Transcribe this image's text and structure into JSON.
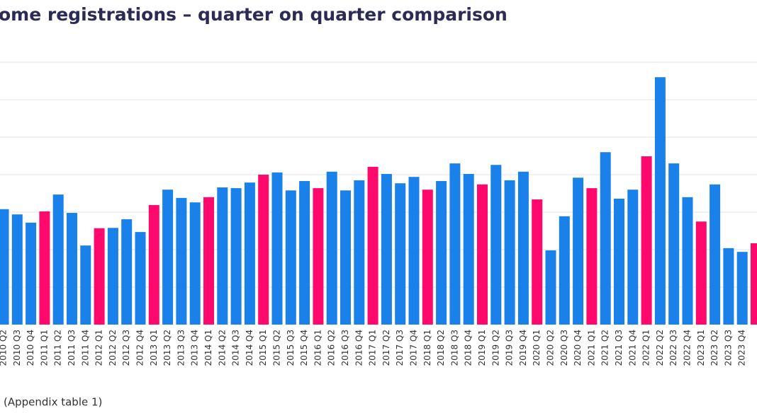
{
  "chart_data": {
    "type": "bar",
    "title": "ome registrations – quarter on quarter comparison",
    "note": "(Appendix table 1)",
    "categories": [
      "2010 Q2",
      "2010 Q3",
      "2010 Q4",
      "2011 Q1",
      "2011 Q2",
      "2011 Q3",
      "2011 Q4",
      "2012 Q1",
      "2012 Q2",
      "2012 Q3",
      "2012 Q4",
      "2013 Q1",
      "2013 Q2",
      "2013 Q3",
      "2013 Q4",
      "2014 Q1",
      "2014 Q2",
      "2014 Q3",
      "2014 Q4",
      "2015 Q1",
      "2015 Q2",
      "2015 Q3",
      "2015 Q4",
      "2016 Q1",
      "2016 Q2",
      "2016 Q3",
      "2016 Q4",
      "2017 Q1",
      "2017 Q2",
      "2017 Q3",
      "2017 Q4",
      "2018 Q1",
      "2018 Q2",
      "2018 Q3",
      "2018 Q4",
      "2019 Q1",
      "2019 Q2",
      "2019 Q3",
      "2019 Q4",
      "2020 Q1",
      "2020 Q2",
      "2020 Q3",
      "2020 Q4",
      "2021 Q1",
      "2021 Q2",
      "2021 Q3",
      "2021 Q4",
      "2022 Q1",
      "2022 Q2",
      "2022 Q3",
      "2022 Q4",
      "2023 Q1",
      "2023 Q2",
      "2023 Q3",
      "2023 Q4",
      null
    ],
    "values": [
      3.08,
      2.94,
      2.72,
      3.02,
      3.47,
      2.98,
      2.11,
      2.57,
      2.58,
      2.81,
      2.47,
      3.19,
      3.6,
      3.38,
      3.26,
      3.4,
      3.66,
      3.64,
      3.79,
      4.0,
      4.06,
      3.58,
      3.83,
      3.64,
      4.08,
      3.58,
      3.85,
      4.21,
      4.02,
      3.77,
      3.94,
      3.6,
      3.83,
      4.3,
      4.02,
      3.74,
      4.26,
      3.85,
      4.08,
      3.34,
      1.98,
      2.89,
      3.92,
      3.64,
      4.6,
      3.36,
      3.6,
      4.49,
      6.6,
      4.3,
      3.4,
      2.75,
      3.74,
      2.04,
      1.94,
      2.17
    ],
    "colors": [
      "#1a80ea",
      "#1a80ea",
      "#1a80ea",
      "#ff0a6c",
      "#1a80ea",
      "#1a80ea",
      "#1a80ea",
      "#ff0a6c",
      "#1a80ea",
      "#1a80ea",
      "#1a80ea",
      "#ff0a6c",
      "#1a80ea",
      "#1a80ea",
      "#1a80ea",
      "#ff0a6c",
      "#1a80ea",
      "#1a80ea",
      "#1a80ea",
      "#ff0a6c",
      "#1a80ea",
      "#1a80ea",
      "#1a80ea",
      "#ff0a6c",
      "#1a80ea",
      "#1a80ea",
      "#1a80ea",
      "#ff0a6c",
      "#1a80ea",
      "#1a80ea",
      "#1a80ea",
      "#ff0a6c",
      "#1a80ea",
      "#1a80ea",
      "#1a80ea",
      "#ff0a6c",
      "#1a80ea",
      "#1a80ea",
      "#1a80ea",
      "#ff0a6c",
      "#1a80ea",
      "#1a80ea",
      "#1a80ea",
      "#ff0a6c",
      "#1a80ea",
      "#1a80ea",
      "#1a80ea",
      "#ff0a6c",
      "#1a80ea",
      "#1a80ea",
      "#1a80ea",
      "#ff0a6c",
      "#1a80ea",
      "#1a80ea",
      "#1a80ea",
      "#ff0a6c"
    ],
    "ylim": [
      0,
      7
    ],
    "gridlines": [
      1,
      2,
      3,
      4,
      5,
      6,
      7
    ]
  }
}
